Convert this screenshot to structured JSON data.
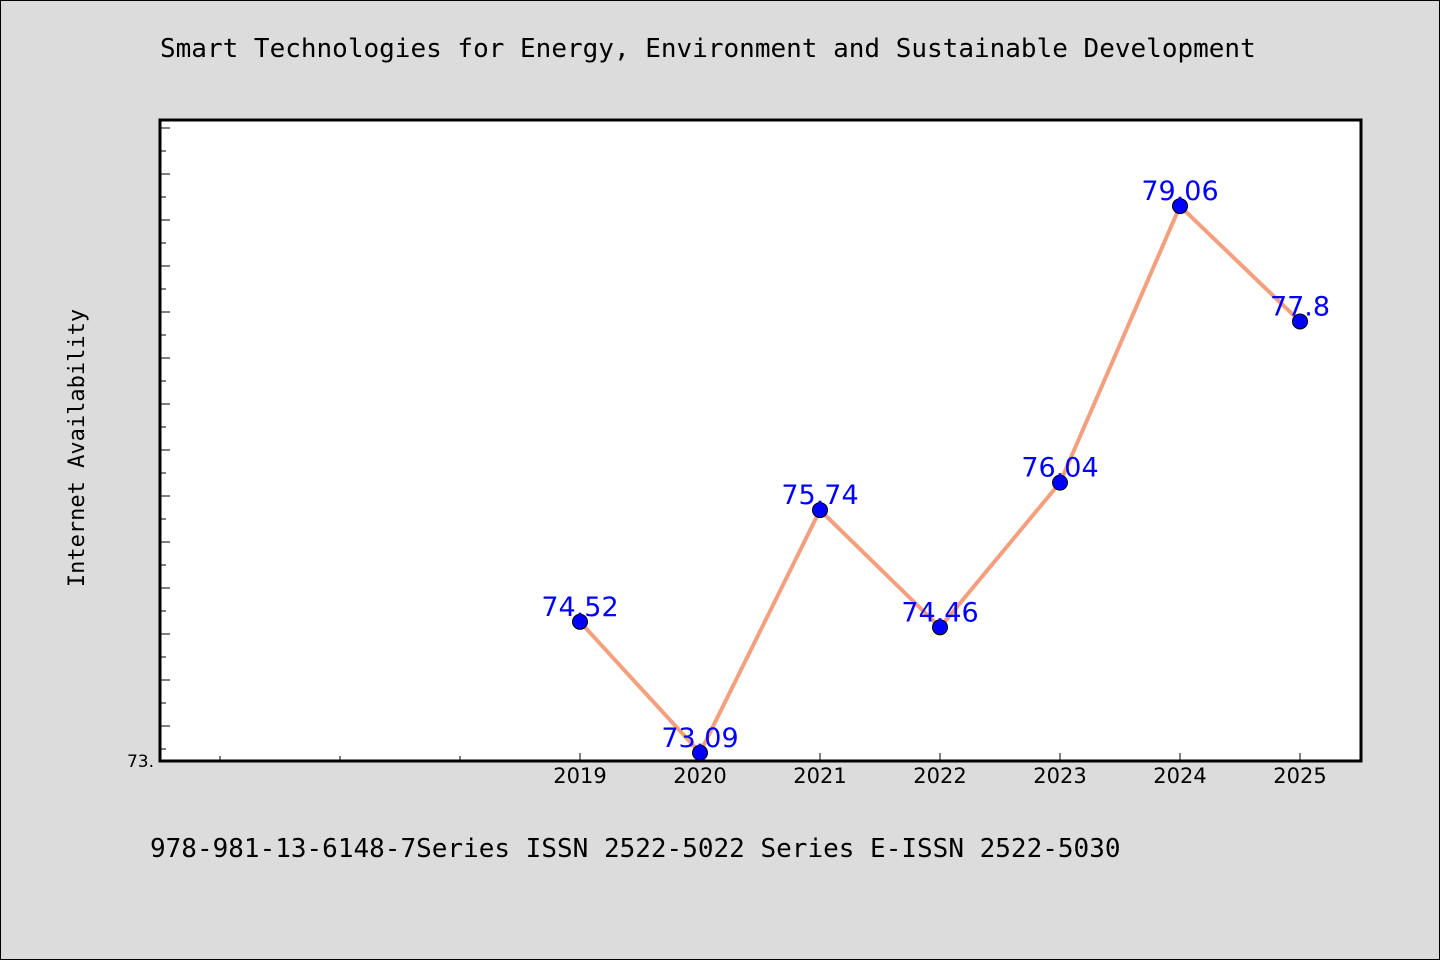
{
  "chart_data": {
    "type": "line",
    "title": "Smart Technologies for Energy, Environment and Sustainable Development",
    "xlabel": "",
    "ylabel": "Internet Availability",
    "categories": [
      "2019",
      "2020",
      "2021",
      "2022",
      "2023",
      "2024",
      "2025"
    ],
    "series": [
      {
        "values": [
          74.52,
          73.09,
          75.74,
          74.46,
          76.04,
          79.06,
          77.8
        ],
        "value_labels": [
          "74.52",
          "73.09",
          "75.74",
          "74.46",
          "76.04",
          "79.06",
          "77.8"
        ],
        "line_color": "#f4a07e",
        "marker_color": "#0000ff"
      }
    ],
    "y_tick_labels": [
      {
        "value": 73.0,
        "label": "73."
      }
    ],
    "ylim": [
      73.0,
      80.0
    ],
    "grid": false,
    "legend": "none",
    "footer": "978-981-13-6148-7Series ISSN 2522-5022 Series E-ISSN 2522-5030"
  }
}
